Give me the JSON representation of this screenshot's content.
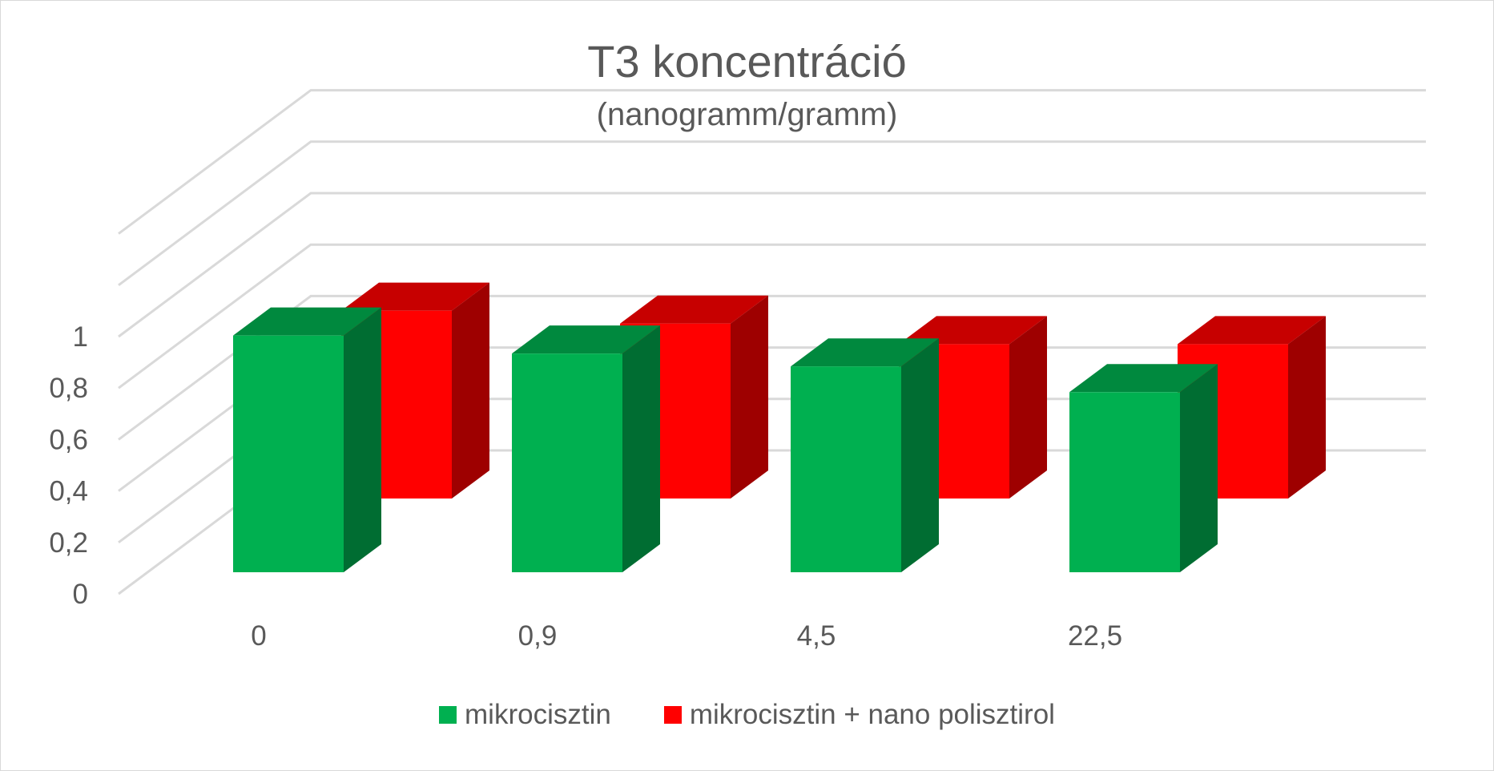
{
  "chart_data": {
    "type": "bar",
    "title": "T3 koncentráció",
    "subtitle": "(nanogramm/gramm)",
    "categories": [
      "0",
      "0,9",
      "4,5",
      "22,5"
    ],
    "series": [
      {
        "name": "mikrocisztin",
        "values": [
          0.92,
          0.85,
          0.8,
          0.7
        ],
        "color": "#00b050"
      },
      {
        "name": "mikrocisztin + nano polisztirol",
        "values": [
          0.73,
          0.68,
          0.6,
          0.6
        ],
        "color": "#ff0000"
      }
    ],
    "y_ticks": [
      "0",
      "0,2",
      "0,4",
      "0,6",
      "0,8",
      "1"
    ],
    "ylim": [
      0,
      1
    ],
    "grid": true,
    "legend_position": "bottom",
    "style": "3D clustered column"
  }
}
